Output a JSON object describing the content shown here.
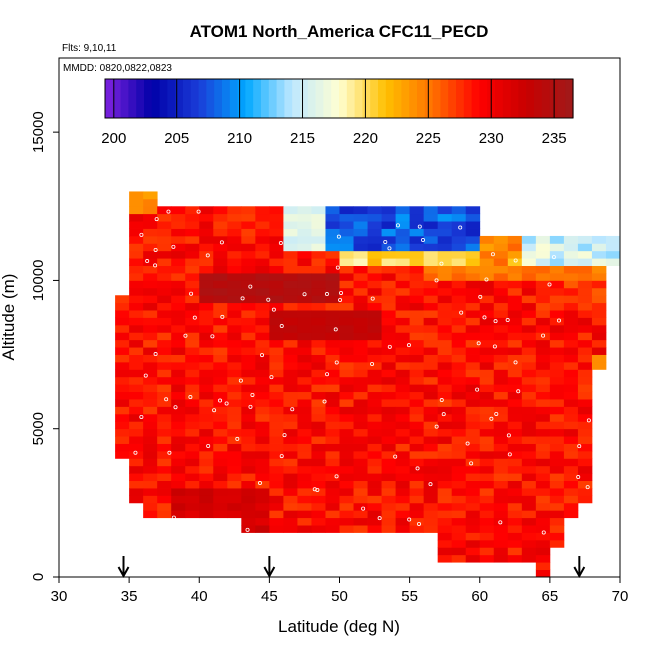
{
  "chart_data": {
    "type": "heatmap",
    "title": "ATOM1 North_America CFC11_PECD",
    "annotation_flights": "Flts: 9,10,11",
    "annotation_dates": "MMDD: 0820,0822,0823",
    "xlabel": "Latitude (deg N)",
    "ylabel": "Altitude (m)",
    "xlim": [
      30,
      70
    ],
    "ylim": [
      0,
      17500
    ],
    "x_ticks": [
      "30",
      "35",
      "40",
      "45",
      "50",
      "55",
      "60",
      "65",
      "70"
    ],
    "y_ticks": [
      "0",
      "5000",
      "10000",
      "15000"
    ],
    "colorbar": {
      "min": 199.3,
      "max": 236.5,
      "ticks": [
        "200",
        "205",
        "210",
        "215",
        "220",
        "225",
        "230",
        "235"
      ],
      "stops": [
        "#7f22e0",
        "#0000a8",
        "#1a3cd8",
        "#00a8ff",
        "#bfe8ff",
        "#ffffd2",
        "#ffc000",
        "#ff7000",
        "#ff0000",
        "#c80000",
        "#a01a1a"
      ]
    },
    "arrow_latitudes": [
      34.6,
      45,
      67.1
    ],
    "grid": false,
    "legend": "colorbar-top"
  }
}
